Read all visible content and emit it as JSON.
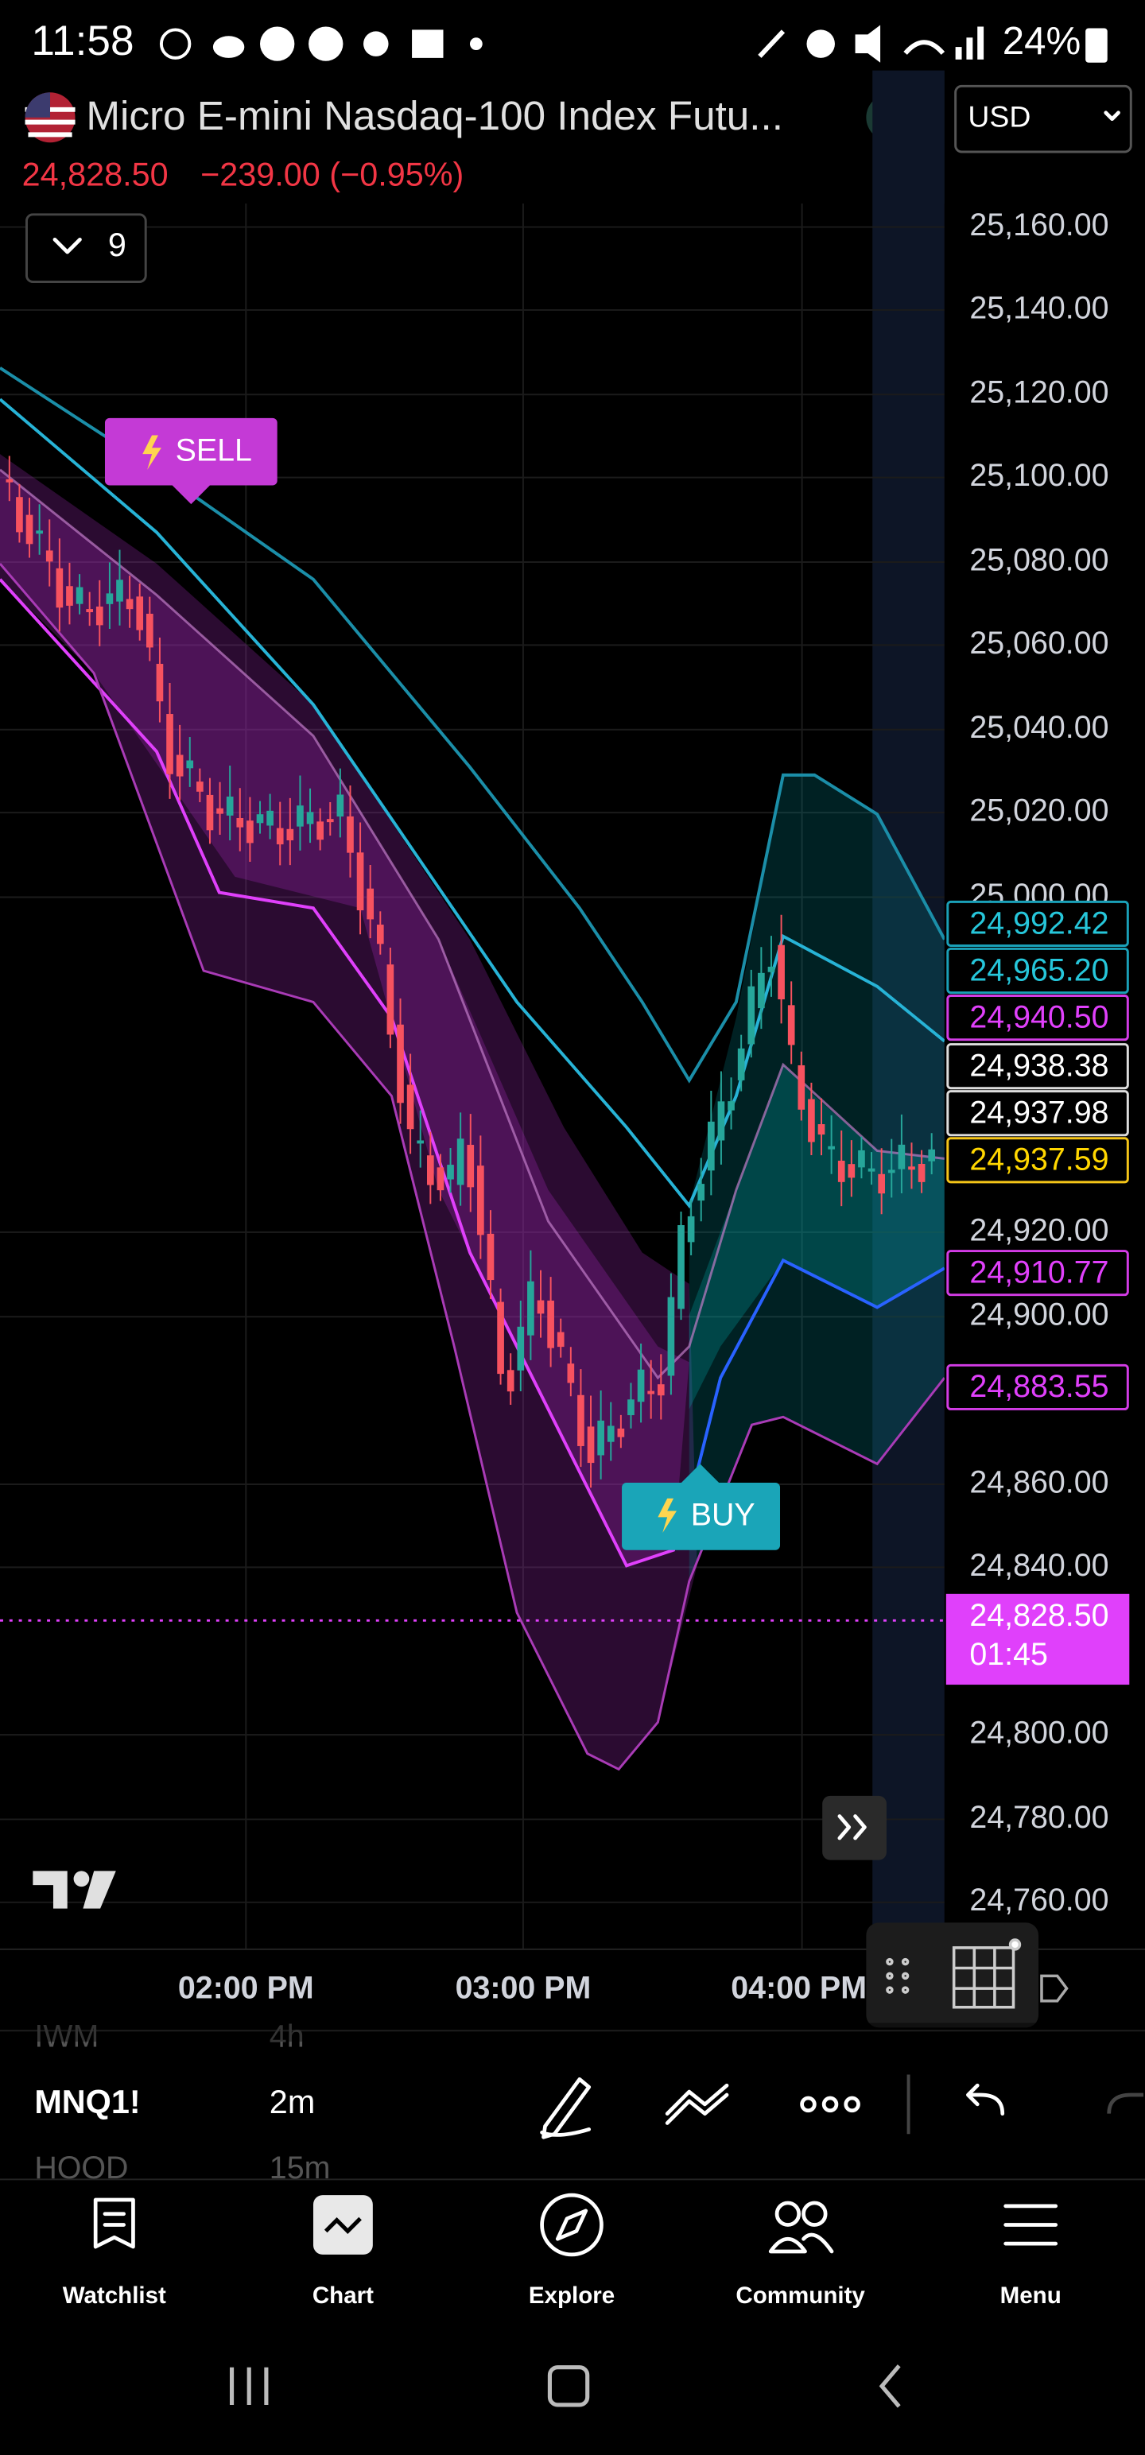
{
  "status_bar": {
    "time": "11:58",
    "battery": "24%"
  },
  "header": {
    "title": "Micro E-mini Nasdaq-100 Index Futu...",
    "currency": "USD",
    "price": "24,828.50",
    "change": "−239.00 (−0.95%)",
    "indicators": "9"
  },
  "chart": {
    "price_axis": [
      "25,160.00",
      "25,140.00",
      "25,120.00",
      "25,100.00",
      "25,080.00",
      "25,060.00",
      "25,040.00",
      "25,020.00",
      "25,000.00",
      "24,920.00",
      "24,900.00",
      "24,860.00",
      "24,840.00",
      "24,800.00",
      "24,780.00",
      "24,760.00"
    ],
    "price_tags": [
      "24,992.42",
      "24,965.20",
      "24,940.50",
      "24,938.38",
      "24,937.98",
      "24,937.59",
      "24,910.77",
      "24,883.55"
    ],
    "last_price": "24,828.50",
    "countdown": "01:45",
    "time_axis": [
      "02:00 PM",
      "03:00 PM",
      "04:00 PM"
    ],
    "signals": {
      "sell": "SELL",
      "buy": "BUY"
    }
  },
  "toolbar": {
    "symbols": [
      "IWM",
      "MNQ1!",
      "HOOD"
    ],
    "intervals": [
      "4h",
      "2m",
      "15m"
    ]
  },
  "bottom_nav": [
    "Watchlist",
    "Chart",
    "Explore",
    "Community",
    "Menu"
  ]
}
